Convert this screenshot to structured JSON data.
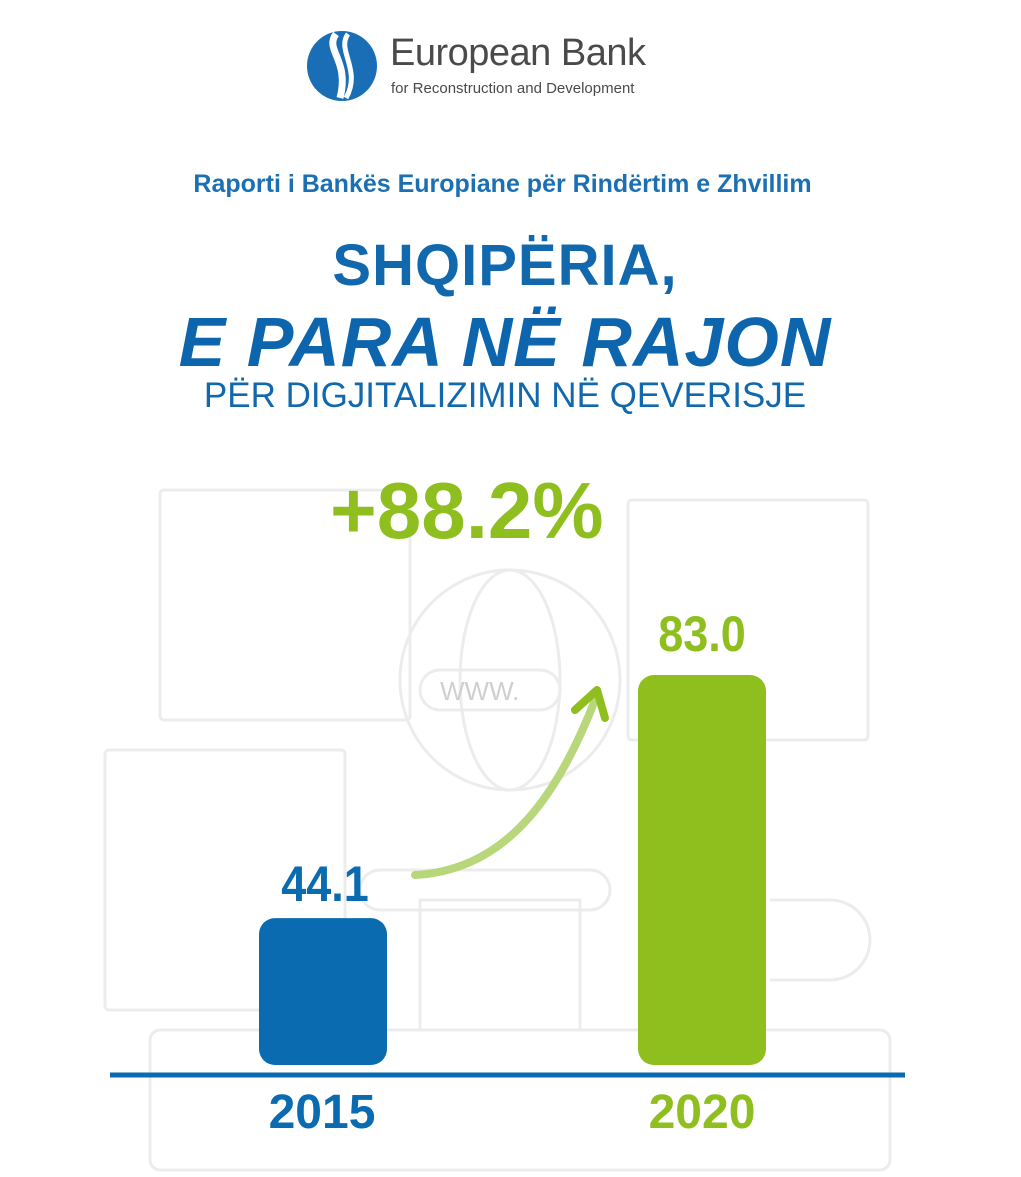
{
  "logo": {
    "name": "European Bank",
    "tagline": "for Reconstruction and Development"
  },
  "header": {
    "subtitle": "Raporti i Bankës Europiane për Rindërtim e Zhvillim",
    "title_line1": "SHQIPËRIA,",
    "title_line2": "E PARA NË RAJON",
    "title_line3": "PËR DIGJITALIZIMIN NË QEVERISJE"
  },
  "background": {
    "url_text": "WWW."
  },
  "chart_data": {
    "type": "bar",
    "title": "SHQIPËRIA, E PARA NË RAJON PËR DIGJITALIZIMIN NË QEVERISJE",
    "categories": [
      "2015",
      "2020"
    ],
    "values": [
      44.1,
      83.0
    ],
    "value_labels": [
      "44.1",
      "83.0"
    ],
    "change_label": "+88.2%",
    "colors": [
      "#0a6bb0",
      "#8fbf1f"
    ],
    "xlabel": "",
    "ylabel": "",
    "ylim": [
      20.6,
      83.0
    ],
    "grid": false
  }
}
